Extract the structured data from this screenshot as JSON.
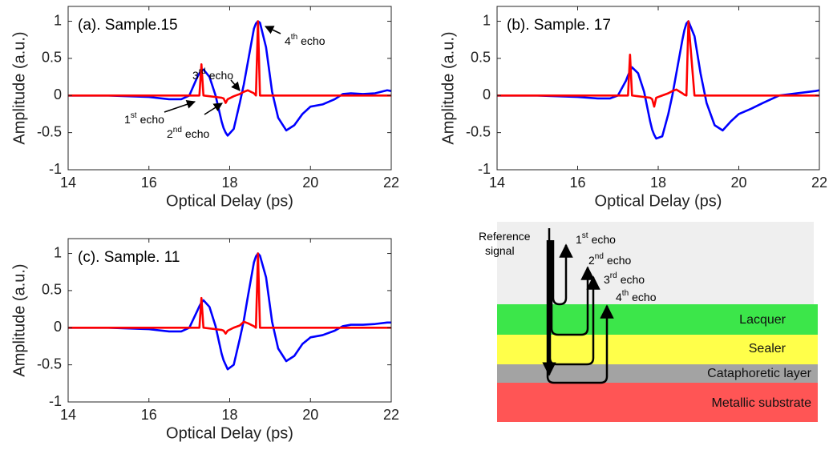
{
  "chart_data": [
    {
      "type": "line",
      "title": "(a). Sample.15",
      "xlabel": "Optical Delay (ps)",
      "ylabel": "Amplitude (a.u.)",
      "x": [
        14,
        14.5,
        15,
        15.5,
        16,
        16.5,
        16.8,
        17,
        17.2,
        17.25,
        17.3,
        17.35,
        17.5,
        17.65,
        17.8,
        17.85,
        17.9,
        17.95,
        18.1,
        18.25,
        18.35,
        18.45,
        18.6,
        18.65,
        18.7,
        18.75,
        18.9,
        19.05,
        19.2,
        19.4,
        19.6,
        19.8,
        20,
        20.3,
        20.6,
        20.8,
        21,
        21.3,
        21.6,
        21.9,
        22
      ],
      "series": [
        {
          "color": "#0000ff",
          "values": [
            0,
            0,
            0,
            -0.01,
            -0.02,
            -0.05,
            -0.05,
            0,
            0.25,
            0.3,
            0.34,
            0.35,
            0.25,
            0,
            -0.35,
            -0.44,
            -0.5,
            -0.54,
            -0.45,
            -0.1,
            0.15,
            0.45,
            0.9,
            0.97,
            1,
            0.98,
            0.65,
            0.05,
            -0.3,
            -0.47,
            -0.4,
            -0.25,
            -0.15,
            -0.12,
            -0.05,
            0.02,
            0.03,
            0.02,
            0.03,
            0.07,
            0.06
          ]
        },
        {
          "color": "#ff0000",
          "values": [
            0,
            0,
            0,
            0,
            0,
            0,
            0,
            0,
            0,
            0,
            0.42,
            0,
            -0.01,
            -0.02,
            -0.03,
            -0.04,
            -0.1,
            -0.05,
            -0.01,
            0.02,
            0.05,
            0.07,
            0.03,
            0,
            1,
            0,
            0,
            0,
            0,
            0,
            0,
            0,
            0,
            0,
            0,
            0,
            0,
            0,
            0,
            0,
            0
          ]
        }
      ],
      "annotations": [
        {
          "base": "1",
          "sup": "st",
          "text": "echo"
        },
        {
          "base": "2",
          "sup": "nd",
          "text": "echo"
        },
        {
          "base": "3",
          "sup": "rd",
          "text": "echo"
        },
        {
          "base": "4",
          "sup": "th",
          "text": "echo"
        }
      ],
      "xlim": [
        14,
        22
      ],
      "xticks": [
        14,
        16,
        18,
        20,
        22
      ],
      "ylim": [
        -1,
        1.2
      ],
      "yticks": [
        -1,
        -0.5,
        0,
        0.5,
        1
      ]
    },
    {
      "type": "line",
      "title": "(b). Sample. 17",
      "xlabel": "Optical Delay (ps)",
      "ylabel": "Amplitude (a.u.)",
      "x": [
        14,
        14.5,
        15,
        15.5,
        16,
        16.5,
        16.8,
        17,
        17.2,
        17.25,
        17.3,
        17.35,
        17.5,
        17.65,
        17.8,
        17.85,
        17.9,
        17.95,
        18.1,
        18.25,
        18.35,
        18.45,
        18.6,
        18.65,
        18.7,
        18.75,
        18.9,
        19.05,
        19.2,
        19.4,
        19.6,
        19.8,
        20,
        20.3,
        20.6,
        20.8,
        21,
        21.3,
        21.6,
        21.9,
        22
      ],
      "series": [
        {
          "color": "#0000ff",
          "values": [
            0,
            0,
            0,
            -0.01,
            -0.02,
            -0.04,
            -0.04,
            0,
            0.2,
            0.27,
            0.33,
            0.38,
            0.3,
            0.05,
            -0.35,
            -0.46,
            -0.53,
            -0.58,
            -0.55,
            -0.25,
            0,
            0.3,
            0.75,
            0.88,
            0.97,
            1,
            0.8,
            0.3,
            -0.1,
            -0.4,
            -0.47,
            -0.35,
            -0.25,
            -0.18,
            -0.1,
            -0.05,
            0,
            0.02,
            0.04,
            0.06,
            0.07
          ]
        },
        {
          "color": "#ff0000",
          "values": [
            0,
            0,
            0,
            0,
            0,
            0,
            0,
            0,
            0,
            0,
            0.55,
            0,
            -0.01,
            -0.02,
            -0.03,
            -0.05,
            -0.15,
            -0.03,
            0,
            0.03,
            0.06,
            0.08,
            0.03,
            0.01,
            0,
            1,
            0,
            0,
            0,
            0,
            0,
            0,
            0,
            0,
            0,
            0,
            0,
            0,
            0,
            0,
            0
          ]
        }
      ],
      "xlim": [
        14,
        22
      ],
      "xticks": [
        14,
        16,
        18,
        20,
        22
      ],
      "ylim": [
        -1,
        1.2
      ],
      "yticks": [
        -1,
        -0.5,
        0,
        0.5,
        1
      ]
    },
    {
      "type": "line",
      "title": "(c). Sample. 11",
      "xlabel": "Optical Delay (ps)",
      "ylabel": "Amplitude (a.u.)",
      "x": [
        14,
        14.5,
        15,
        15.5,
        16,
        16.5,
        16.8,
        17,
        17.2,
        17.25,
        17.3,
        17.35,
        17.5,
        17.65,
        17.8,
        17.85,
        17.9,
        17.95,
        18.1,
        18.25,
        18.35,
        18.45,
        18.6,
        18.65,
        18.7,
        18.75,
        18.9,
        19.05,
        19.2,
        19.4,
        19.6,
        19.8,
        20,
        20.3,
        20.6,
        20.8,
        21,
        21.3,
        21.6,
        21.9,
        22
      ],
      "series": [
        {
          "color": "#0000ff",
          "values": [
            0,
            0,
            0,
            -0.01,
            -0.02,
            -0.05,
            -0.05,
            0,
            0.23,
            0.29,
            0.34,
            0.37,
            0.28,
            0.02,
            -0.35,
            -0.44,
            -0.5,
            -0.56,
            -0.5,
            -0.15,
            0.1,
            0.42,
            0.88,
            0.96,
            1,
            0.97,
            0.68,
            0.08,
            -0.28,
            -0.45,
            -0.38,
            -0.22,
            -0.13,
            -0.1,
            -0.04,
            0.02,
            0.04,
            0.04,
            0.05,
            0.07,
            0.07
          ]
        },
        {
          "color": "#ff0000",
          "values": [
            0,
            0,
            0,
            0,
            0,
            0,
            0,
            0,
            0,
            0,
            0.4,
            0,
            -0.01,
            -0.02,
            -0.03,
            -0.04,
            -0.08,
            -0.04,
            0,
            0.03,
            0.08,
            0.06,
            0.02,
            0,
            1,
            0,
            0,
            0,
            0,
            0,
            0,
            0,
            0,
            0,
            0,
            0,
            0,
            0,
            0,
            0,
            0
          ]
        }
      ],
      "xlim": [
        14,
        22
      ],
      "xticks": [
        14,
        16,
        18,
        20,
        22
      ],
      "ylim": [
        -1,
        1.2
      ],
      "yticks": [
        -1,
        -0.5,
        0,
        0.5,
        1
      ]
    }
  ],
  "diagram": {
    "reference": "Reference signal",
    "echoes": [
      {
        "base": "1",
        "sup": "st",
        "text": "echo"
      },
      {
        "base": "2",
        "sup": "nd",
        "text": "echo"
      },
      {
        "base": "3",
        "sup": "rd",
        "text": "echo"
      },
      {
        "base": "4",
        "sup": "th",
        "text": "echo"
      }
    ],
    "layers": [
      "Lacquer",
      "Sealer",
      "Cataphoretic layer",
      "Metallic substrate"
    ]
  }
}
